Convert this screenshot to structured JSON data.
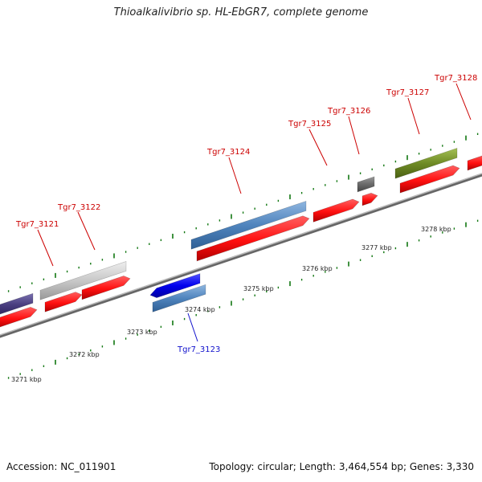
{
  "title": "Thioalkalivibrio sp. HL-EbGR7, complete genome",
  "footer": {
    "accession": "Accession: NC_011901",
    "topology": "Topology: circular; Length: 3,464,554 bp; Genes: 3,330"
  },
  "scale_labels": [
    "3271 kbp",
    "3272 kbp",
    "3273 kbp",
    "3274 kbp",
    "3275 kbp",
    "3276 kbp",
    "3277 kbp",
    "3278 kbp"
  ],
  "gene_labels": [
    "Tgr7_3121",
    "Tgr7_3122",
    "Tgr7_3123",
    "Tgr7_3124",
    "Tgr7_3125",
    "Tgr7_3126",
    "Tgr7_3127",
    "Tgr7_3128"
  ],
  "colors": {
    "cds": "#ff1010",
    "gene_label_forward": "#cc0000",
    "gene_label_reverse": "#1010cc",
    "tick": "#116611",
    "backbone": "#999999",
    "feature_purple": "#4a3f80",
    "feature_gray": "#c8c8c8",
    "feature_blue": "#0000ee",
    "feature_steel": "#4f84bd",
    "feature_dark_gray": "#6a6a6a",
    "feature_olive": "#6f8b25"
  }
}
